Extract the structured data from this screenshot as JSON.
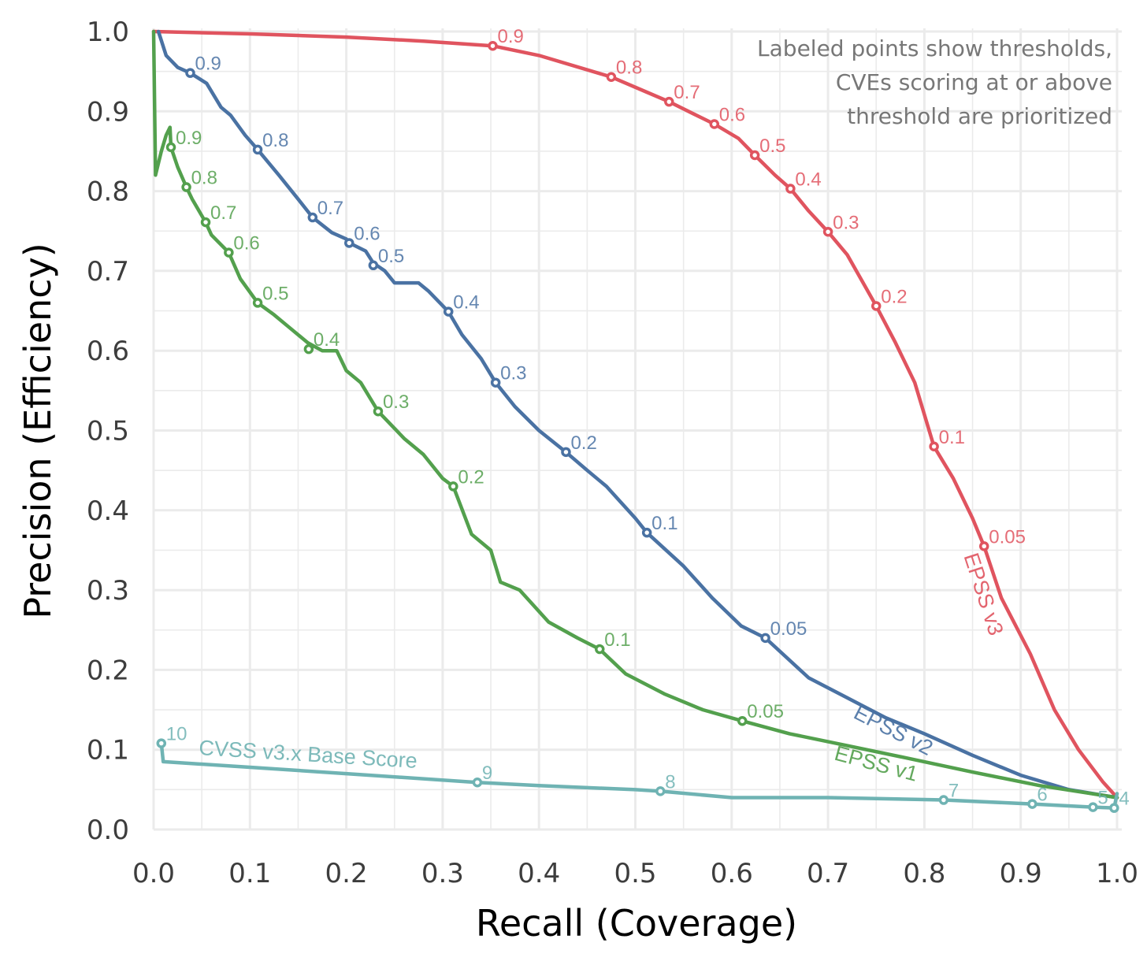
{
  "chart_data": {
    "type": "line",
    "xlabel": "Recall (Coverage)",
    "ylabel": "Precision (Efficiency)",
    "xlim": [
      0,
      1
    ],
    "ylim": [
      0,
      1
    ],
    "x_ticks": [
      "0.0",
      "0.1",
      "0.2",
      "0.3",
      "0.4",
      "0.5",
      "0.6",
      "0.7",
      "0.8",
      "0.9",
      "1.0"
    ],
    "y_ticks": [
      "0.0",
      "0.1",
      "0.2",
      "0.3",
      "0.4",
      "0.5",
      "0.6",
      "0.7",
      "0.8",
      "0.9",
      "1.0"
    ],
    "grid": true,
    "annotation": [
      "Labeled points show thresholds,",
      "CVEs scoring at or above",
      "threshold are prioritized"
    ],
    "series": [
      {
        "name": "EPSS v3",
        "color": "#e0545f",
        "points": [
          [
            0,
            1.0
          ],
          [
            0.1,
            0.997
          ],
          [
            0.2,
            0.993
          ],
          [
            0.28,
            0.988
          ],
          [
            0.352,
            0.982
          ],
          [
            0.4,
            0.97
          ],
          [
            0.475,
            0.943
          ],
          [
            0.51,
            0.925
          ],
          [
            0.535,
            0.912
          ],
          [
            0.56,
            0.897
          ],
          [
            0.582,
            0.884
          ],
          [
            0.607,
            0.866
          ],
          [
            0.624,
            0.845
          ],
          [
            0.645,
            0.82
          ],
          [
            0.661,
            0.803
          ],
          [
            0.68,
            0.775
          ],
          [
            0.7,
            0.749
          ],
          [
            0.72,
            0.72
          ],
          [
            0.75,
            0.656
          ],
          [
            0.77,
            0.61
          ],
          [
            0.79,
            0.56
          ],
          [
            0.81,
            0.48
          ],
          [
            0.83,
            0.44
          ],
          [
            0.85,
            0.39
          ],
          [
            0.862,
            0.355
          ],
          [
            0.88,
            0.29
          ],
          [
            0.91,
            0.22
          ],
          [
            0.935,
            0.15
          ],
          [
            0.96,
            0.1
          ],
          [
            0.985,
            0.06
          ],
          [
            1.0,
            0.04
          ]
        ],
        "thresholds": [
          {
            "label": "0.9",
            "x": 0.352,
            "y": 0.982
          },
          {
            "label": "0.8",
            "x": 0.475,
            "y": 0.943
          },
          {
            "label": "0.7",
            "x": 0.535,
            "y": 0.912
          },
          {
            "label": "0.6",
            "x": 0.582,
            "y": 0.884
          },
          {
            "label": "0.5",
            "x": 0.624,
            "y": 0.845
          },
          {
            "label": "0.4",
            "x": 0.661,
            "y": 0.803
          },
          {
            "label": "0.3",
            "x": 0.7,
            "y": 0.749
          },
          {
            "label": "0.2",
            "x": 0.75,
            "y": 0.656
          },
          {
            "label": "0.1",
            "x": 0.81,
            "y": 0.48
          },
          {
            "label": "0.05",
            "x": 0.862,
            "y": 0.355
          }
        ]
      },
      {
        "name": "EPSS v2",
        "color": "#4a72a3",
        "points": [
          [
            0.005,
            1.0
          ],
          [
            0.013,
            0.97
          ],
          [
            0.025,
            0.955
          ],
          [
            0.038,
            0.948
          ],
          [
            0.055,
            0.935
          ],
          [
            0.07,
            0.905
          ],
          [
            0.08,
            0.895
          ],
          [
            0.095,
            0.87
          ],
          [
            0.108,
            0.852
          ],
          [
            0.13,
            0.82
          ],
          [
            0.15,
            0.79
          ],
          [
            0.165,
            0.767
          ],
          [
            0.185,
            0.748
          ],
          [
            0.2,
            0.74
          ],
          [
            0.203,
            0.735
          ],
          [
            0.22,
            0.725
          ],
          [
            0.228,
            0.71
          ],
          [
            0.24,
            0.7
          ],
          [
            0.25,
            0.685
          ],
          [
            0.275,
            0.685
          ],
          [
            0.285,
            0.675
          ],
          [
            0.306,
            0.649
          ],
          [
            0.32,
            0.62
          ],
          [
            0.34,
            0.59
          ],
          [
            0.355,
            0.56
          ],
          [
            0.375,
            0.53
          ],
          [
            0.4,
            0.5
          ],
          [
            0.428,
            0.473
          ],
          [
            0.45,
            0.45
          ],
          [
            0.47,
            0.43
          ],
          [
            0.5,
            0.39
          ],
          [
            0.512,
            0.372
          ],
          [
            0.55,
            0.33
          ],
          [
            0.58,
            0.29
          ],
          [
            0.61,
            0.255
          ],
          [
            0.635,
            0.24
          ],
          [
            0.68,
            0.19
          ],
          [
            0.72,
            0.165
          ],
          [
            0.76,
            0.14
          ],
          [
            0.8,
            0.12
          ],
          [
            0.85,
            0.093
          ],
          [
            0.9,
            0.068
          ],
          [
            0.95,
            0.05
          ],
          [
            1.0,
            0.04
          ]
        ],
        "thresholds": [
          {
            "label": "0.9",
            "x": 0.038,
            "y": 0.948
          },
          {
            "label": "0.8",
            "x": 0.108,
            "y": 0.852
          },
          {
            "label": "0.7",
            "x": 0.165,
            "y": 0.767
          },
          {
            "label": "0.6",
            "x": 0.203,
            "y": 0.735
          },
          {
            "label": "0.5",
            "x": 0.228,
            "y": 0.707
          },
          {
            "label": "0.4",
            "x": 0.306,
            "y": 0.649
          },
          {
            "label": "0.3",
            "x": 0.355,
            "y": 0.56
          },
          {
            "label": "0.2",
            "x": 0.428,
            "y": 0.473
          },
          {
            "label": "0.1",
            "x": 0.512,
            "y": 0.372
          },
          {
            "label": "0.05",
            "x": 0.635,
            "y": 0.24
          }
        ]
      },
      {
        "name": "EPSS v1",
        "color": "#53a04d",
        "points": [
          [
            0.0,
            1.0
          ],
          [
            0.002,
            0.82
          ],
          [
            0.008,
            0.85
          ],
          [
            0.013,
            0.87
          ],
          [
            0.017,
            0.88
          ],
          [
            0.018,
            0.855
          ],
          [
            0.025,
            0.83
          ],
          [
            0.034,
            0.805
          ],
          [
            0.04,
            0.79
          ],
          [
            0.054,
            0.761
          ],
          [
            0.06,
            0.745
          ],
          [
            0.078,
            0.723
          ],
          [
            0.09,
            0.69
          ],
          [
            0.108,
            0.66
          ],
          [
            0.125,
            0.645
          ],
          [
            0.14,
            0.63
          ],
          [
            0.16,
            0.61
          ],
          [
            0.175,
            0.6
          ],
          [
            0.19,
            0.6
          ],
          [
            0.2,
            0.575
          ],
          [
            0.215,
            0.56
          ],
          [
            0.233,
            0.524
          ],
          [
            0.26,
            0.49
          ],
          [
            0.28,
            0.47
          ],
          [
            0.3,
            0.44
          ],
          [
            0.311,
            0.43
          ],
          [
            0.33,
            0.37
          ],
          [
            0.35,
            0.35
          ],
          [
            0.36,
            0.31
          ],
          [
            0.38,
            0.3
          ],
          [
            0.41,
            0.26
          ],
          [
            0.44,
            0.24
          ],
          [
            0.463,
            0.226
          ],
          [
            0.49,
            0.195
          ],
          [
            0.53,
            0.17
          ],
          [
            0.57,
            0.15
          ],
          [
            0.611,
            0.136
          ],
          [
            0.66,
            0.12
          ],
          [
            0.72,
            0.105
          ],
          [
            0.78,
            0.09
          ],
          [
            0.85,
            0.072
          ],
          [
            0.92,
            0.055
          ],
          [
            1.0,
            0.04
          ]
        ],
        "thresholds": [
          {
            "label": "0.9",
            "x": 0.018,
            "y": 0.855
          },
          {
            "label": "0.8",
            "x": 0.034,
            "y": 0.805
          },
          {
            "label": "0.7",
            "x": 0.054,
            "y": 0.761
          },
          {
            "label": "0.6",
            "x": 0.078,
            "y": 0.723
          },
          {
            "label": "0.5",
            "x": 0.108,
            "y": 0.66
          },
          {
            "label": "0.4",
            "x": 0.161,
            "y": 0.602
          },
          {
            "label": "0.3",
            "x": 0.233,
            "y": 0.524
          },
          {
            "label": "0.2",
            "x": 0.311,
            "y": 0.43
          },
          {
            "label": "0.1",
            "x": 0.463,
            "y": 0.226
          },
          {
            "label": "0.05",
            "x": 0.611,
            "y": 0.136
          }
        ]
      },
      {
        "name": "CVSS v3.x Base Score",
        "color": "#6fb3b3",
        "points": [
          [
            0.008,
            0.108
          ],
          [
            0.01,
            0.085
          ],
          [
            0.1,
            0.078
          ],
          [
            0.2,
            0.07
          ],
          [
            0.336,
            0.059
          ],
          [
            0.4,
            0.055
          ],
          [
            0.5,
            0.05
          ],
          [
            0.526,
            0.048
          ],
          [
            0.6,
            0.04
          ],
          [
            0.7,
            0.04
          ],
          [
            0.82,
            0.037
          ],
          [
            0.912,
            0.032
          ],
          [
            0.975,
            0.028
          ],
          [
            0.997,
            0.027
          ],
          [
            1.0,
            0.045
          ]
        ],
        "thresholds": [
          {
            "label": "10",
            "x": 0.008,
            "y": 0.108
          },
          {
            "label": "9",
            "x": 0.336,
            "y": 0.059
          },
          {
            "label": "8",
            "x": 0.526,
            "y": 0.048
          },
          {
            "label": "7",
            "x": 0.82,
            "y": 0.037
          },
          {
            "label": "6",
            "x": 0.912,
            "y": 0.032
          },
          {
            "label": "5",
            "x": 0.975,
            "y": 0.028
          },
          {
            "label": "4",
            "x": 0.997,
            "y": 0.027
          }
        ]
      }
    ]
  }
}
